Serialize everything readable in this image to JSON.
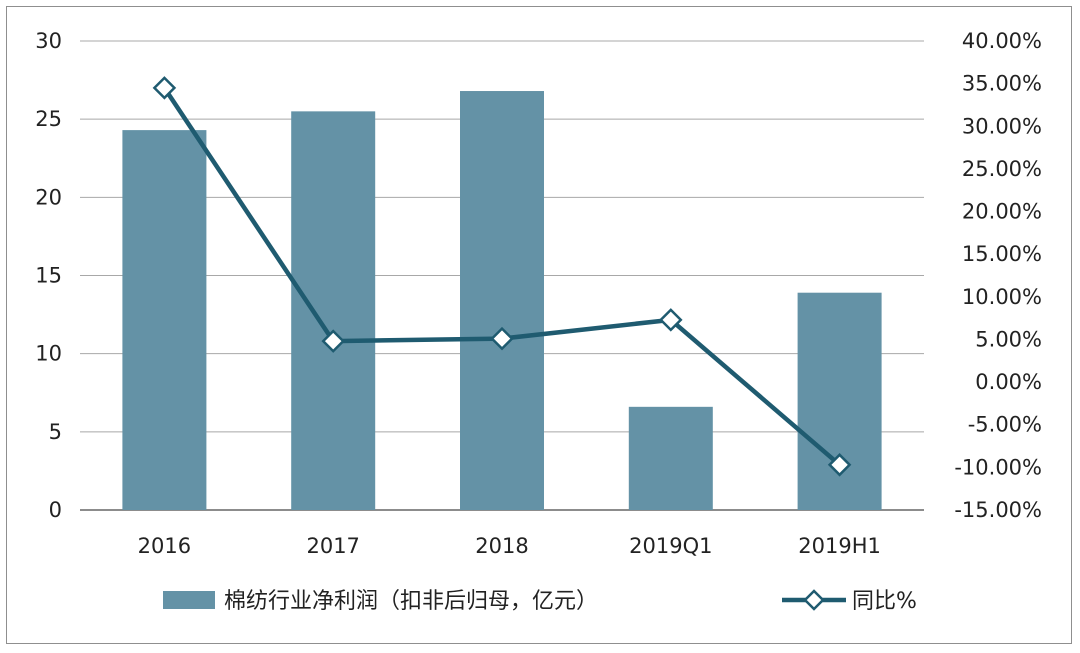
{
  "chart_data": {
    "type": "bar",
    "categories": [
      "2016",
      "2017",
      "2018",
      "2019Q1",
      "2019H1"
    ],
    "series": [
      {
        "name": "棉纺行业净利润（扣非后归母，亿元）",
        "type": "bar",
        "axis": "left",
        "color": "#6492a6",
        "values": [
          24.3,
          25.5,
          26.8,
          6.6,
          13.9
        ]
      },
      {
        "name": "同比%",
        "type": "line",
        "axis": "right",
        "color": "#1f5b70",
        "marker": "diamond",
        "values": [
          34.5,
          4.8,
          5.1,
          7.3,
          -9.7
        ]
      }
    ],
    "y_left": {
      "min": 0,
      "max": 30,
      "step": 5,
      "tick_labels": [
        "0",
        "5",
        "10",
        "15",
        "20",
        "25",
        "30"
      ]
    },
    "y_right": {
      "min": -15,
      "max": 40,
      "step": 5,
      "tick_labels": [
        "-15.00%",
        "-10.00%",
        "-5.00%",
        "0.00%",
        "5.00%",
        "10.00%",
        "15.00%",
        "20.00%",
        "25.00%",
        "30.00%",
        "35.00%",
        "40.00%"
      ]
    },
    "grid": true,
    "legend_position": "bottom"
  }
}
